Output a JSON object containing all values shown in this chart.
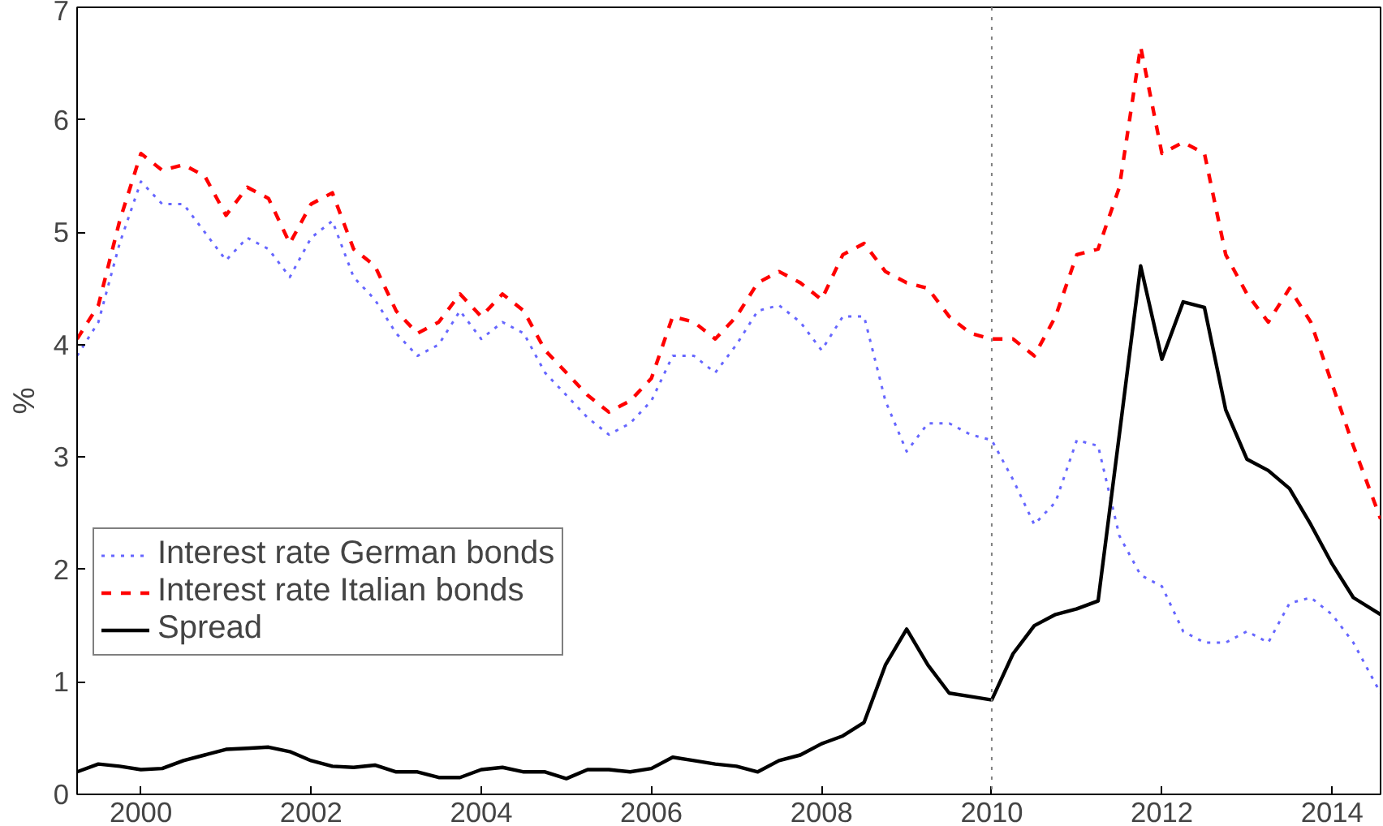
{
  "chart_data": {
    "type": "line",
    "ylabel": "%",
    "xlim": [
      1999.25,
      2014.57
    ],
    "ylim": [
      0,
      7
    ],
    "xticks": [
      2000,
      2002,
      2004,
      2006,
      2008,
      2010,
      2012,
      2014
    ],
    "yticks": [
      0,
      1,
      2,
      3,
      4,
      5,
      6,
      7
    ],
    "grid": false,
    "legend": "left",
    "x": [
      1999.25,
      1999.5,
      1999.75,
      2000,
      2000.25,
      2000.5,
      2000.75,
      2001,
      2001.25,
      2001.5,
      2001.75,
      2002,
      2002.25,
      2002.5,
      2002.75,
      2003,
      2003.25,
      2003.5,
      2003.75,
      2004,
      2004.25,
      2004.5,
      2004.75,
      2005,
      2005.25,
      2005.5,
      2005.75,
      2006,
      2006.25,
      2006.5,
      2006.75,
      2007,
      2007.25,
      2007.5,
      2007.75,
      2008,
      2008.25,
      2008.5,
      2008.75,
      2009,
      2009.25,
      2009.5,
      2009.75,
      2010,
      2010.25,
      2010.5,
      2010.75,
      2011,
      2011.25,
      2011.5,
      2011.75,
      2012,
      2012.25,
      2012.5,
      2012.75,
      2013,
      2013.25,
      2013.5,
      2013.75,
      2014,
      2014.25,
      2014.57
    ],
    "series": [
      {
        "name": "Interest rate German bonds",
        "color": "#6666ff",
        "line_style": "dotted",
        "values": [
          3.9,
          4.2,
          4.9,
          5.45,
          5.25,
          5.25,
          5.0,
          4.75,
          4.95,
          4.85,
          4.6,
          4.95,
          5.1,
          4.6,
          4.4,
          4.1,
          3.9,
          4.0,
          4.3,
          4.05,
          4.2,
          4.1,
          3.75,
          3.55,
          3.35,
          3.2,
          3.3,
          3.5,
          3.9,
          3.9,
          3.75,
          4.0,
          4.3,
          4.35,
          4.2,
          3.95,
          4.25,
          4.25,
          3.5,
          3.05,
          3.3,
          3.3,
          3.2,
          3.15,
          2.8,
          2.4,
          2.6,
          3.15,
          3.1,
          2.3,
          1.95,
          1.85,
          1.45,
          1.35,
          1.35,
          1.45,
          1.35,
          1.7,
          1.75,
          1.6,
          1.35,
          0.9
        ]
      },
      {
        "name": "Interest rate Italian bonds",
        "color": "#ff0000",
        "line_style": "dashed",
        "values": [
          4.05,
          4.35,
          5.1,
          5.7,
          5.55,
          5.6,
          5.5,
          5.15,
          5.4,
          5.3,
          4.9,
          5.25,
          5.35,
          4.85,
          4.7,
          4.3,
          4.1,
          4.2,
          4.45,
          4.25,
          4.45,
          4.3,
          3.95,
          3.75,
          3.55,
          3.4,
          3.5,
          3.7,
          4.25,
          4.2,
          4.05,
          4.25,
          4.55,
          4.65,
          4.55,
          4.4,
          4.8,
          4.9,
          4.65,
          4.55,
          4.5,
          4.25,
          4.1,
          4.05,
          4.05,
          3.9,
          4.25,
          4.8,
          4.85,
          5.4,
          6.65,
          5.7,
          5.8,
          5.7,
          4.8,
          4.45,
          4.2,
          4.5,
          4.2,
          3.65,
          3.1,
          2.45
        ]
      },
      {
        "name": "Spread",
        "color": "#000000",
        "line_style": "solid",
        "values": [
          0.2,
          0.27,
          0.25,
          0.22,
          0.23,
          0.3,
          0.35,
          0.4,
          0.41,
          0.42,
          0.38,
          0.3,
          0.25,
          0.24,
          0.26,
          0.2,
          0.2,
          0.15,
          0.15,
          0.22,
          0.24,
          0.2,
          0.2,
          0.14,
          0.22,
          0.22,
          0.2,
          0.23,
          0.33,
          0.3,
          0.27,
          0.25,
          0.2,
          0.3,
          0.35,
          0.45,
          0.52,
          0.64,
          1.15,
          1.47,
          1.15,
          0.9,
          0.87,
          0.84,
          1.25,
          1.5,
          1.6,
          1.65,
          1.72,
          3.2,
          4.7,
          3.87,
          4.38,
          4.33,
          3.42,
          2.98,
          2.88,
          2.72,
          2.4,
          2.05,
          1.75,
          1.6
        ]
      }
    ],
    "ref_lines": [
      {
        "axis": "x",
        "value": 2010,
        "color": "#808080",
        "line_style": "dotted"
      }
    ]
  }
}
